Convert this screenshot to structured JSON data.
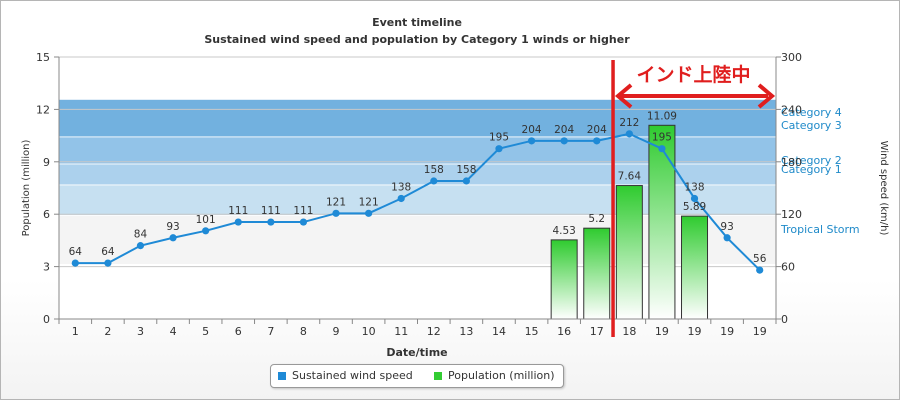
{
  "chart_data": {
    "type": "bar",
    "title": "Event timeline",
    "subtitle": "Sustained wind speed and population by Category 1 winds or higher",
    "xlabel": "Date/time",
    "ylabel": "Population (million)",
    "y2label": "Wind speed (km/h)",
    "categories": [
      "1",
      "2",
      "3",
      "4",
      "5",
      "6",
      "7",
      "8",
      "9",
      "10",
      "11",
      "12",
      "13",
      "14",
      "15",
      "16",
      "17",
      "18",
      "19",
      "19",
      "19",
      "19"
    ],
    "ylim": [
      0,
      15
    ],
    "y2lim": [
      0,
      300
    ],
    "y_ticks": [
      "0",
      "3",
      "6",
      "9",
      "12",
      "15"
    ],
    "y2_ticks": [
      "0",
      "60",
      "120",
      "180",
      "240",
      "300"
    ],
    "grid": true,
    "legend_position": "bottom",
    "colors": {
      "wind": "#1f8ad6",
      "population": "#33cc33",
      "annotation": "#e01e1e"
    },
    "series": [
      {
        "name": "Sustained wind speed",
        "type": "line",
        "axis": "right",
        "values": [
          64,
          64,
          84,
          93,
          101,
          111,
          111,
          111,
          121,
          121,
          138,
          158,
          158,
          195,
          204,
          204,
          204,
          212,
          195,
          138,
          93,
          56
        ]
      },
      {
        "name": "Population (million)",
        "type": "bar",
        "axis": "left",
        "values": [
          null,
          null,
          null,
          null,
          null,
          null,
          null,
          null,
          null,
          null,
          null,
          null,
          null,
          null,
          null,
          4.53,
          5.2,
          7.64,
          11.09,
          5.89,
          null,
          null
        ]
      }
    ],
    "bands": [
      {
        "label": "Tropical Storm",
        "from": 63,
        "to": 118
      },
      {
        "label": "Category 1",
        "from": 119,
        "to": 153
      },
      {
        "label": "Category 2",
        "from": 154,
        "to": 177
      },
      {
        "label": "Category 3",
        "from": 178,
        "to": 208
      },
      {
        "label": "Category 4",
        "from": 209,
        "to": 251
      }
    ],
    "annotation": {
      "label": "インド上陸中",
      "at_index": 16.5
    }
  },
  "legend": {
    "wind_label": "Sustained wind speed",
    "pop_label": "Population (million)"
  }
}
